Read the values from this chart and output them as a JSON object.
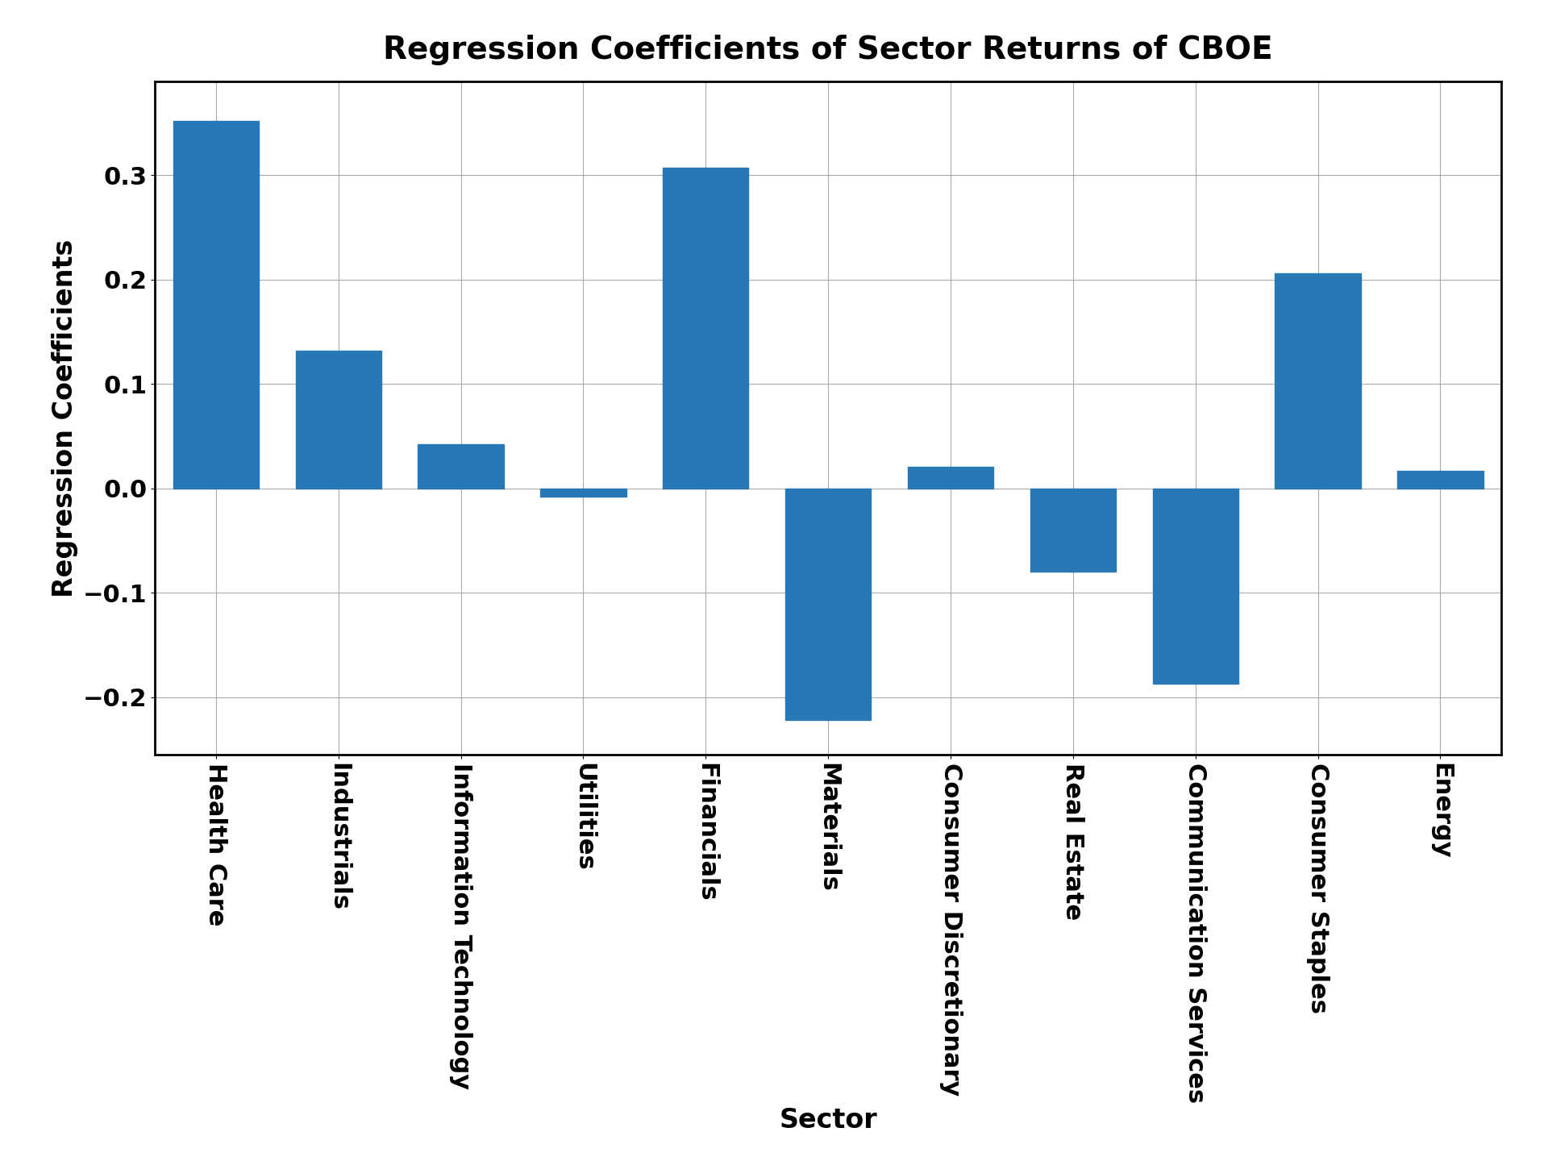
{
  "categories": [
    "Health Care",
    "Industrials",
    "Information Technology",
    "Utilities",
    "Financials",
    "Materials",
    "Consumer Discretionary",
    "Real Estate",
    "Communication Services",
    "Consumer Staples",
    "Energy"
  ],
  "values": [
    0.352,
    0.132,
    0.042,
    -0.008,
    0.307,
    -0.222,
    0.021,
    -0.08,
    -0.187,
    0.206,
    0.017
  ],
  "bar_color": "#2878b5",
  "title": "Regression Coefficients of Sector Returns of CBOE",
  "xlabel": "Sector",
  "ylabel": "Regression Coefficients",
  "title_fontsize": 28,
  "label_fontsize": 24,
  "tick_fontsize": 22,
  "ylim": [
    -0.255,
    0.39
  ],
  "background_color": "#ffffff",
  "grid_color": "#aaaaaa",
  "bar_width": 0.7
}
